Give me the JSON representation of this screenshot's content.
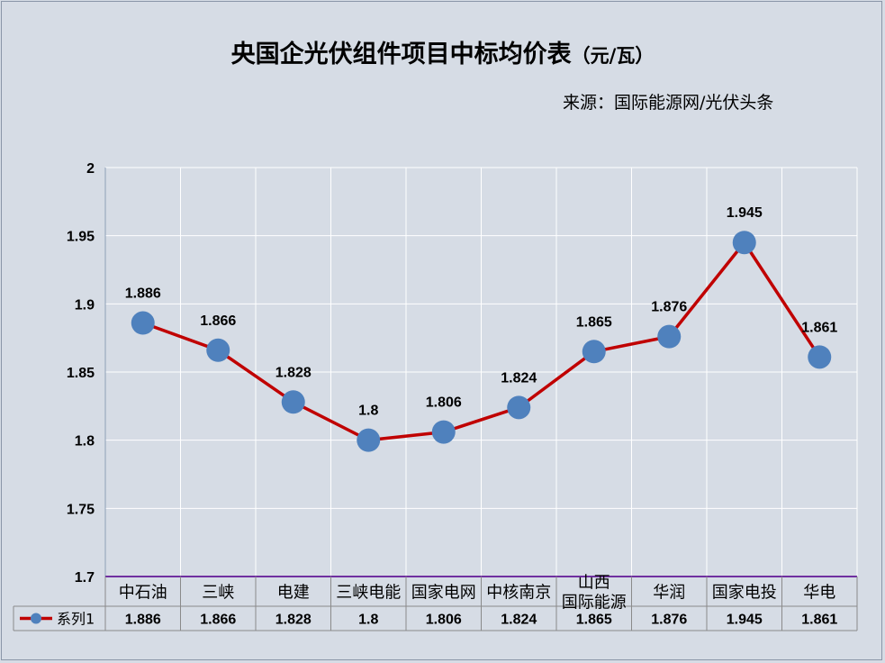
{
  "title": "央国企光伏组件项目中标均价表",
  "title_unit": "（元/瓦）",
  "source": "来源：国际能源网/光伏头条",
  "colors": {
    "background": "#d6dce5",
    "line": "#c00000",
    "marker": "#4f81bd",
    "grid": "#ffffff",
    "axis": "#7030a0"
  },
  "chart_data": {
    "type": "line",
    "categories": [
      "中石油",
      "三峡",
      "电建",
      "三峡电能",
      "国家电网",
      "中核南京",
      "山西\n国际能源",
      "华润",
      "国家电投",
      "华电"
    ],
    "series": [
      {
        "name": "系列1",
        "values": [
          1.886,
          1.866,
          1.828,
          1.8,
          1.806,
          1.824,
          1.865,
          1.876,
          1.945,
          1.861
        ]
      }
    ],
    "data_labels": [
      "1.886",
      "1.866",
      "1.828",
      "1.8",
      "1.806",
      "1.824",
      "1.865",
      "1.876",
      "1.945",
      "1.861"
    ],
    "yticks": [
      "2",
      "1.95",
      "1.9",
      "1.85",
      "1.8",
      "1.75",
      "1.7"
    ],
    "ylim": [
      1.7,
      2.0
    ],
    "grid": true,
    "legend": "data-table"
  }
}
